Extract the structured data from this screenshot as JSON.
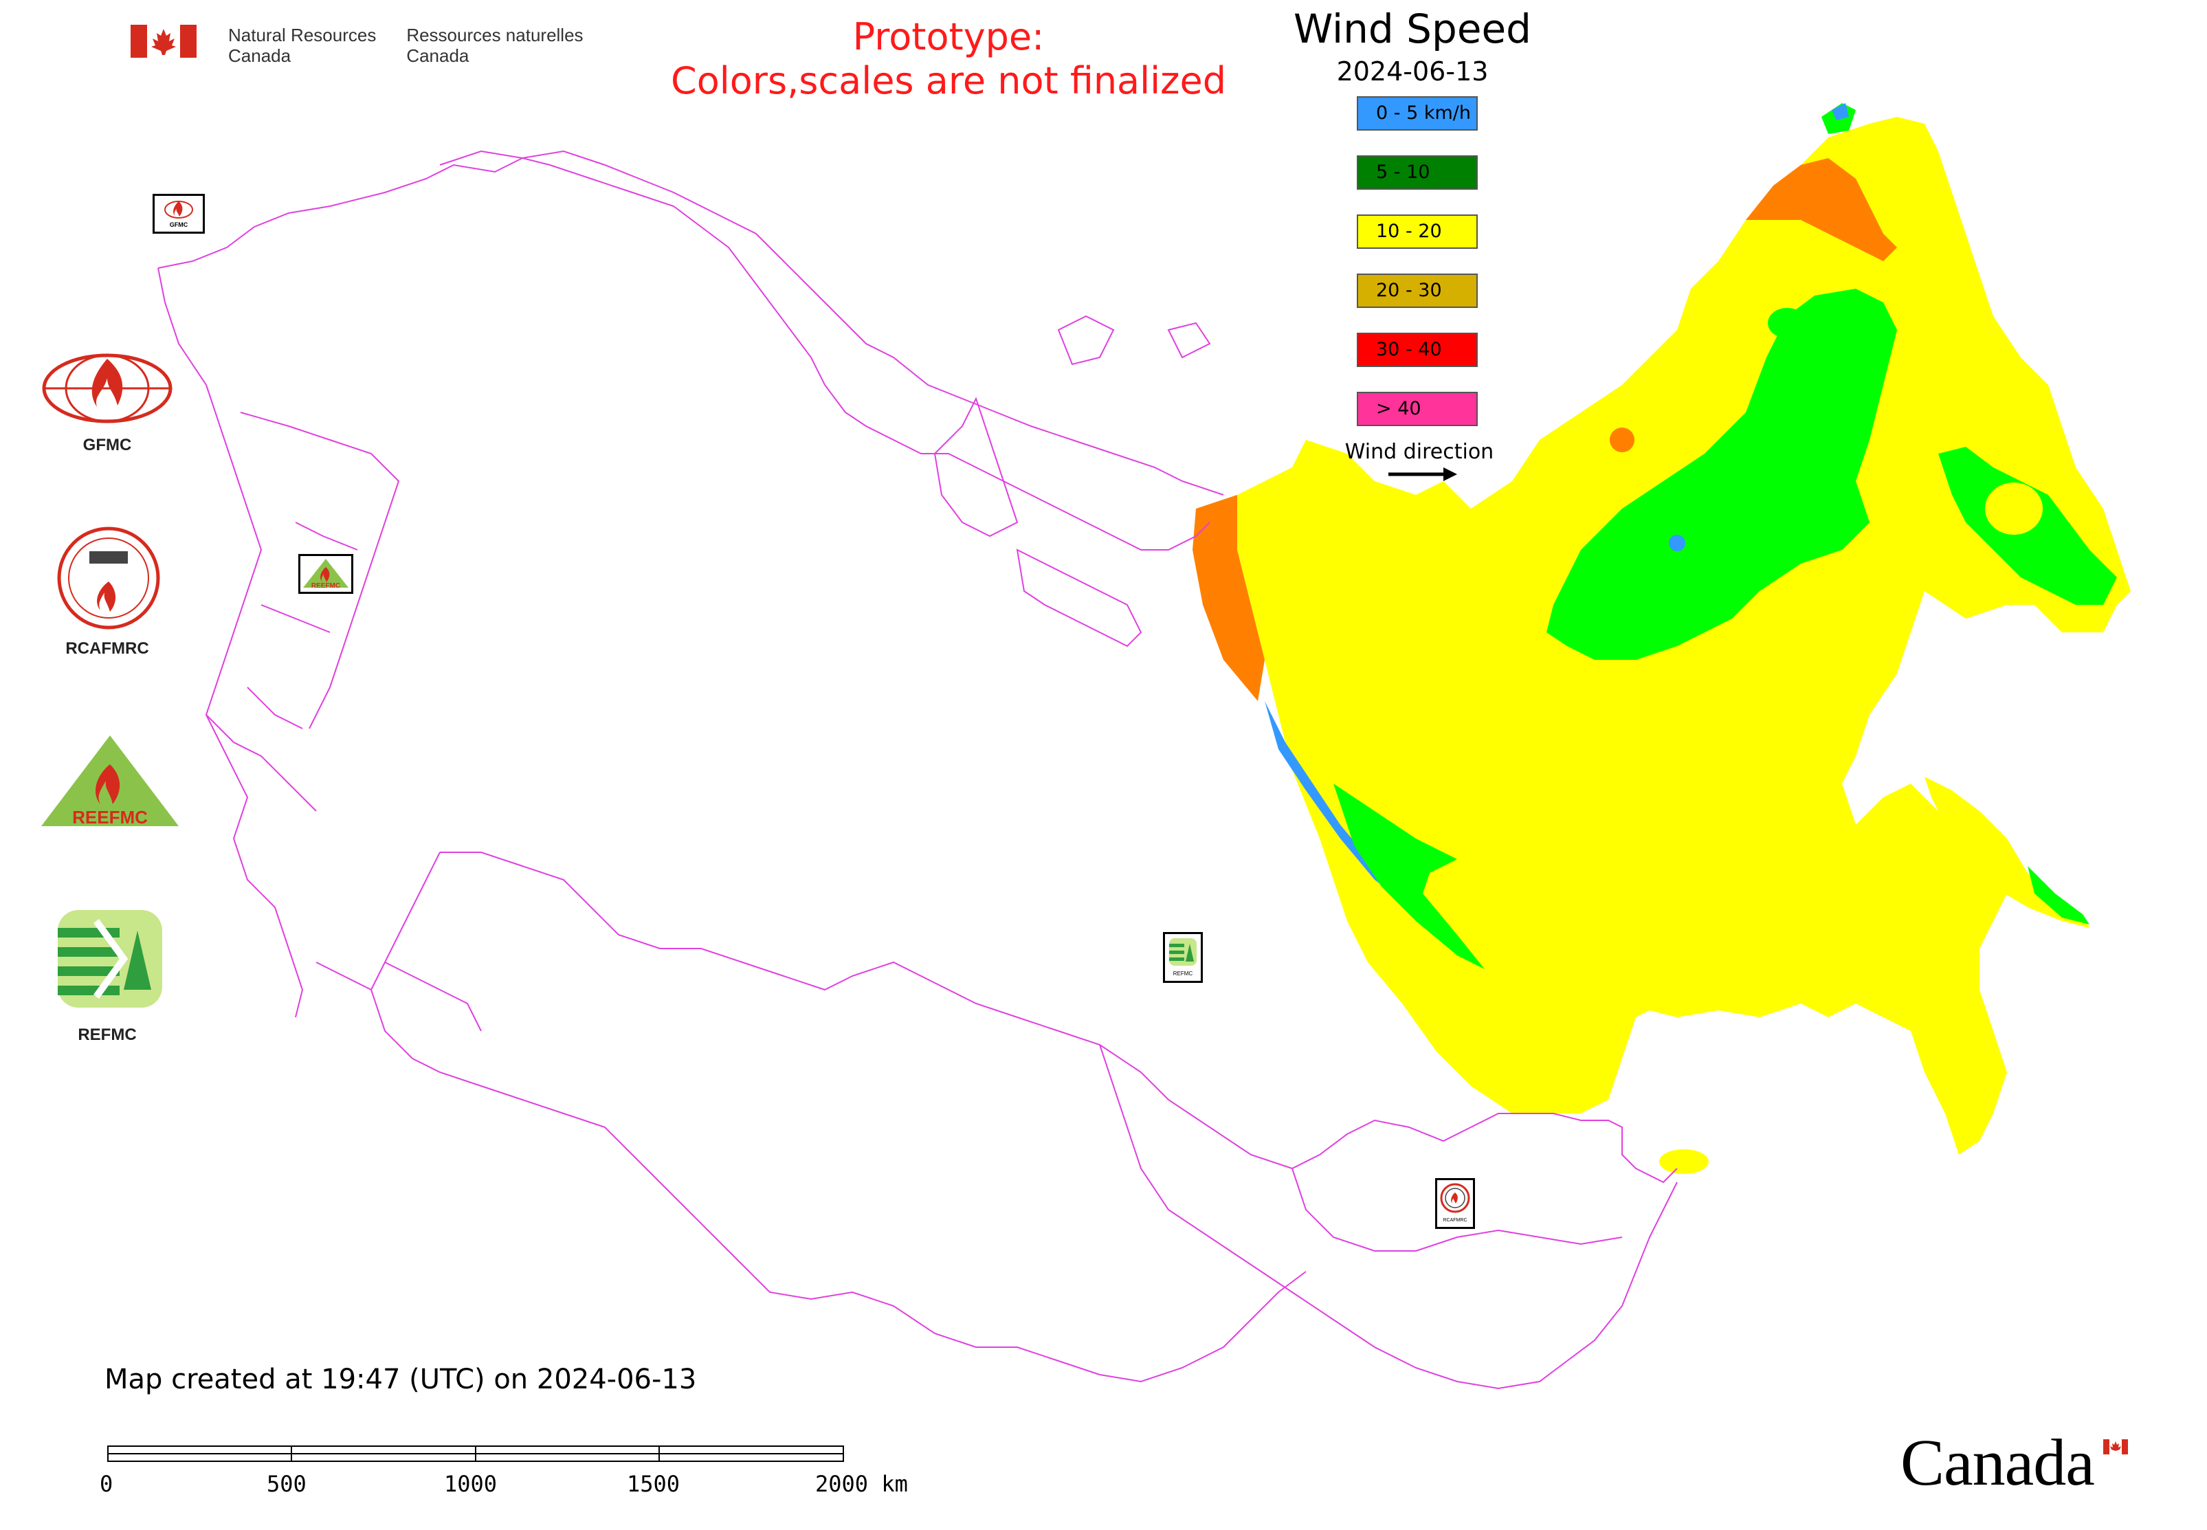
{
  "header": {
    "org_en": [
      "Natural Resources",
      "Canada"
    ],
    "org_fr": [
      "Ressources naturelles",
      "Canada"
    ],
    "prototype_line1": "Prototype:",
    "prototype_line2": "Colors,scales are not finalized"
  },
  "legend": {
    "title": "Wind Speed",
    "date": "2024-06-13",
    "items": [
      {
        "label": "0 - 5 km/h",
        "color": "#3399ff"
      },
      {
        "label": "5 - 10",
        "color": "#008000"
      },
      {
        "label": "10 - 20",
        "color": "#ffff00"
      },
      {
        "label": "20 - 30",
        "color": "#d6b000"
      },
      {
        "label": "30 - 40",
        "color": "#ff0000"
      },
      {
        "label": "> 40",
        "color": "#ff3399"
      }
    ],
    "wind_direction_label": "Wind direction"
  },
  "side_logos": [
    {
      "label": "GFMC",
      "icon": "gfmc-logo-icon"
    },
    {
      "label": "RCAFMRC",
      "icon": "rcafmrc-logo-icon"
    },
    {
      "label": "",
      "icon": "reefmc-logo-icon",
      "wordmark": "REEFMC"
    },
    {
      "label": "REFMC",
      "icon": "refmc-logo-icon"
    }
  ],
  "map_markers": [
    {
      "label": "GFMC",
      "icon": "gfmc-marker-icon"
    },
    {
      "label": "REEFMC",
      "icon": "reefmc-marker-icon"
    },
    {
      "label": "REFMC",
      "icon": "refmc-marker-icon"
    },
    {
      "label": "RCAFMRC",
      "icon": "rcafmrc-marker-icon"
    }
  ],
  "footer": {
    "created": "Map created at 19:47 (UTC) on 2024-06-13",
    "scale_labels": [
      "0",
      "500",
      "1000",
      "1500",
      "2000 km"
    ],
    "wordmark": "Canada"
  },
  "colors": {
    "boundary": "#e040e0",
    "calm": "#3399ff",
    "light": "#00ff00",
    "moderate": "#ffff00",
    "fresh": "#ff8000",
    "title_red": "#ff1a1a"
  }
}
